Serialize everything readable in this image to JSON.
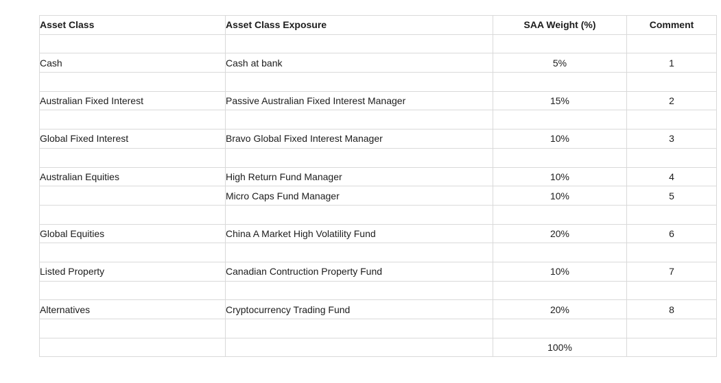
{
  "table": {
    "columns": [
      {
        "field": "asset_class",
        "label": "Asset Class",
        "align": "left"
      },
      {
        "field": "exposure",
        "label": "Asset Class Exposure",
        "align": "left"
      },
      {
        "field": "weight",
        "label": "SAA Weight (%)",
        "align": "center"
      },
      {
        "field": "comment",
        "label": "Comment",
        "align": "center"
      }
    ],
    "rows": [
      {
        "asset_class": "",
        "exposure": "",
        "weight": "",
        "comment": ""
      },
      {
        "asset_class": "Cash",
        "exposure": "Cash at bank",
        "weight": "5%",
        "comment": "1"
      },
      {
        "asset_class": "",
        "exposure": "",
        "weight": "",
        "comment": ""
      },
      {
        "asset_class": "Australian Fixed Interest",
        "exposure": "Passive Australian Fixed Interest Manager",
        "weight": "15%",
        "comment": "2"
      },
      {
        "asset_class": "",
        "exposure": "",
        "weight": "",
        "comment": ""
      },
      {
        "asset_class": "Global Fixed Interest",
        "exposure": "Bravo Global Fixed Interest Manager",
        "weight": "10%",
        "comment": "3"
      },
      {
        "asset_class": "",
        "exposure": "",
        "weight": "",
        "comment": ""
      },
      {
        "asset_class": "Australian Equities",
        "exposure": "High Return Fund Manager",
        "weight": "10%",
        "comment": "4"
      },
      {
        "asset_class": "",
        "exposure": "Micro Caps Fund Manager",
        "weight": "10%",
        "comment": "5"
      },
      {
        "asset_class": "",
        "exposure": "",
        "weight": "",
        "comment": ""
      },
      {
        "asset_class": "Global Equities",
        "exposure": "China A Market High Volatility Fund",
        "weight": "20%",
        "comment": "6"
      },
      {
        "asset_class": "",
        "exposure": "",
        "weight": "",
        "comment": ""
      },
      {
        "asset_class": "Listed Property",
        "exposure": "Canadian Contruction Property Fund",
        "weight": "10%",
        "comment": "7"
      },
      {
        "asset_class": "",
        "exposure": "",
        "weight": "",
        "comment": ""
      },
      {
        "asset_class": "Alternatives",
        "exposure": "Cryptocurrency Trading Fund",
        "weight": "20%",
        "comment": "8"
      },
      {
        "asset_class": "",
        "exposure": "",
        "weight": "",
        "comment": ""
      },
      {
        "asset_class": "",
        "exposure": "",
        "weight": "100%",
        "comment": "",
        "is_total": true
      }
    ],
    "colors": {
      "gridline": "#d9d9d9",
      "text": "#1c1c1c",
      "sum_border": "#000000",
      "background": "#ffffff"
    }
  }
}
